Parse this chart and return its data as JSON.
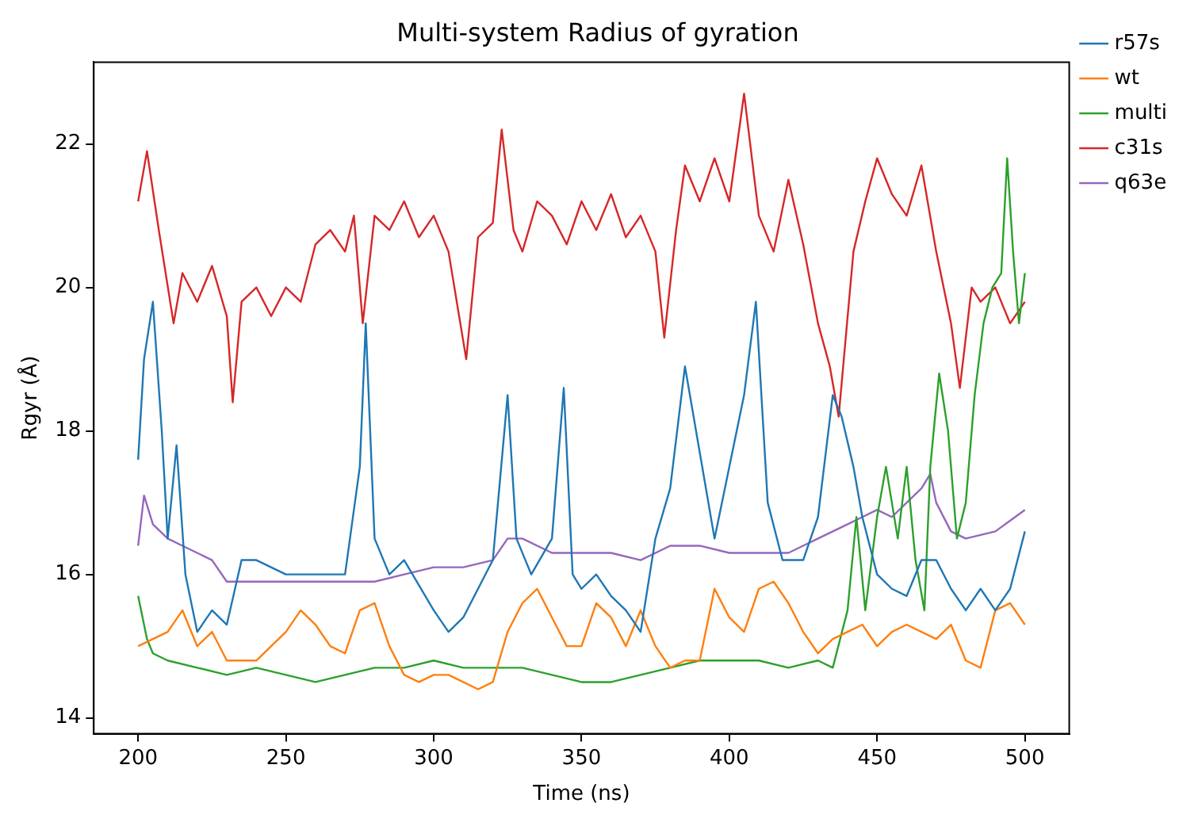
{
  "chart_data": {
    "type": "line",
    "title": "Multi-system Radius of gyration",
    "xlabel": "Time (ns)",
    "ylabel": "Rgyr (Å)",
    "xlim": [
      185,
      515
    ],
    "ylim": [
      13.78,
      23.14
    ],
    "xticks": [
      200,
      250,
      300,
      350,
      400,
      450,
      500
    ],
    "yticks": [
      14,
      16,
      18,
      20,
      22
    ],
    "grid": false,
    "legend": "top right",
    "marker": "none",
    "line_style": "solid",
    "series": [
      {
        "name": "r57s",
        "color": "#1f77b4",
        "x": [
          200,
          202,
          205,
          208,
          210,
          213,
          216,
          220,
          225,
          230,
          235,
          240,
          250,
          260,
          270,
          275,
          277,
          280,
          285,
          290,
          300,
          305,
          310,
          315,
          320,
          325,
          328,
          333,
          340,
          344,
          347,
          350,
          355,
          360,
          365,
          370,
          375,
          380,
          385,
          390,
          395,
          400,
          405,
          409,
          413,
          418,
          425,
          430,
          435,
          438,
          442,
          445,
          450,
          455,
          460,
          465,
          470,
          475,
          480,
          485,
          490,
          495,
          500
        ],
        "values": [
          17.6,
          19,
          19.8,
          18,
          16.5,
          17.8,
          16,
          15.2,
          15.5,
          15.3,
          16.2,
          16.2,
          16,
          16,
          16,
          17.5,
          19.5,
          16.5,
          16,
          16.2,
          15.5,
          15.2,
          15.4,
          15.8,
          16.2,
          18.5,
          16.5,
          16,
          16.5,
          18.6,
          16,
          15.8,
          16,
          15.7,
          15.5,
          15.2,
          16.5,
          17.2,
          18.9,
          17.7,
          16.5,
          17.5,
          18.5,
          19.8,
          17,
          16.2,
          16.2,
          16.8,
          18.5,
          18.2,
          17.5,
          16.8,
          16,
          15.8,
          15.7,
          16.2,
          16.2,
          15.8,
          15.5,
          15.8,
          15.5,
          15.8,
          16.6
        ]
      },
      {
        "name": "wt",
        "color": "#ff7f0e",
        "x": [
          200,
          205,
          210,
          215,
          220,
          225,
          230,
          235,
          240,
          245,
          250,
          255,
          260,
          265,
          270,
          275,
          280,
          285,
          290,
          295,
          300,
          305,
          310,
          315,
          320,
          325,
          330,
          335,
          340,
          345,
          350,
          355,
          360,
          365,
          370,
          375,
          380,
          385,
          390,
          395,
          400,
          405,
          410,
          415,
          420,
          425,
          430,
          435,
          440,
          445,
          450,
          455,
          460,
          465,
          470,
          475,
          480,
          485,
          490,
          495,
          500
        ],
        "values": [
          15,
          15.1,
          15.2,
          15.5,
          15,
          15.2,
          14.8,
          14.8,
          14.8,
          15,
          15.2,
          15.5,
          15.3,
          15,
          14.9,
          15.5,
          15.6,
          15,
          14.6,
          14.5,
          14.6,
          14.6,
          14.5,
          14.4,
          14.5,
          15.2,
          15.6,
          15.8,
          15.4,
          15,
          15,
          15.6,
          15.4,
          15,
          15.5,
          15,
          14.7,
          14.8,
          14.8,
          15.8,
          15.4,
          15.2,
          15.8,
          15.9,
          15.6,
          15.2,
          14.9,
          15.1,
          15.2,
          15.3,
          15,
          15.2,
          15.3,
          15.2,
          15.1,
          15.3,
          14.8,
          14.7,
          15.5,
          15.6,
          15.3
        ]
      },
      {
        "name": "multi",
        "color": "#2ca02c",
        "x": [
          200,
          203,
          205,
          210,
          220,
          230,
          240,
          250,
          260,
          270,
          280,
          290,
          300,
          310,
          320,
          330,
          340,
          350,
          360,
          370,
          380,
          390,
          400,
          410,
          420,
          430,
          435,
          440,
          443,
          446,
          450,
          453,
          457,
          460,
          463,
          466,
          468,
          471,
          474,
          477,
          480,
          483,
          486,
          489,
          492,
          494,
          496,
          498,
          500
        ],
        "values": [
          15.7,
          15.1,
          14.9,
          14.8,
          14.7,
          14.6,
          14.7,
          14.6,
          14.5,
          14.6,
          14.7,
          14.7,
          14.8,
          14.7,
          14.7,
          14.7,
          14.6,
          14.5,
          14.5,
          14.6,
          14.7,
          14.8,
          14.8,
          14.8,
          14.7,
          14.8,
          14.7,
          15.5,
          16.8,
          15.5,
          16.8,
          17.5,
          16.5,
          17.5,
          16.2,
          15.5,
          17.5,
          18.8,
          18,
          16.5,
          17,
          18.5,
          19.5,
          20,
          20.2,
          21.8,
          20.5,
          19.5,
          20.2
        ]
      },
      {
        "name": "c31s",
        "color": "#d62728",
        "x": [
          200,
          203,
          207,
          212,
          215,
          220,
          225,
          230,
          232,
          235,
          240,
          245,
          250,
          255,
          260,
          265,
          270,
          273,
          276,
          280,
          285,
          290,
          295,
          300,
          305,
          311,
          315,
          320,
          323,
          327,
          330,
          335,
          340,
          345,
          350,
          355,
          360,
          365,
          370,
          375,
          378,
          382,
          385,
          390,
          395,
          400,
          405,
          410,
          415,
          420,
          425,
          430,
          434,
          437,
          442,
          446,
          450,
          455,
          460,
          465,
          470,
          475,
          478,
          482,
          485,
          490,
          495,
          500
        ],
        "values": [
          21.2,
          21.9,
          20.8,
          19.5,
          20.2,
          19.8,
          20.3,
          19.6,
          18.4,
          19.8,
          20,
          19.6,
          20,
          19.8,
          20.6,
          20.8,
          20.5,
          21,
          19.5,
          21,
          20.8,
          21.2,
          20.7,
          21,
          20.5,
          19,
          20.7,
          20.9,
          22.2,
          20.8,
          20.5,
          21.2,
          21,
          20.6,
          21.2,
          20.8,
          21.3,
          20.7,
          21,
          20.5,
          19.3,
          20.8,
          21.7,
          21.2,
          21.8,
          21.2,
          22.7,
          21,
          20.5,
          21.5,
          20.6,
          19.5,
          18.9,
          18.2,
          20.5,
          21.2,
          21.8,
          21.3,
          21,
          21.7,
          20.5,
          19.5,
          18.6,
          20,
          19.8,
          20,
          19.5,
          19.8
        ]
      },
      {
        "name": "q63e",
        "color": "#9467bd",
        "x": [
          200,
          202,
          205,
          210,
          215,
          220,
          225,
          230,
          235,
          240,
          250,
          260,
          270,
          280,
          290,
          300,
          310,
          320,
          325,
          330,
          340,
          350,
          360,
          370,
          380,
          390,
          400,
          410,
          420,
          430,
          440,
          445,
          450,
          455,
          460,
          465,
          468,
          470,
          475,
          480,
          490,
          500
        ],
        "values": [
          16.4,
          17.1,
          16.7,
          16.5,
          16.4,
          16.3,
          16.2,
          15.9,
          15.9,
          15.9,
          15.9,
          15.9,
          15.9,
          15.9,
          16,
          16.1,
          16.1,
          16.2,
          16.5,
          16.5,
          16.3,
          16.3,
          16.3,
          16.2,
          16.4,
          16.4,
          16.3,
          16.3,
          16.3,
          16.5,
          16.7,
          16.8,
          16.9,
          16.8,
          17,
          17.2,
          17.4,
          17,
          16.6,
          16.5,
          16.6,
          16.9
        ]
      }
    ]
  }
}
